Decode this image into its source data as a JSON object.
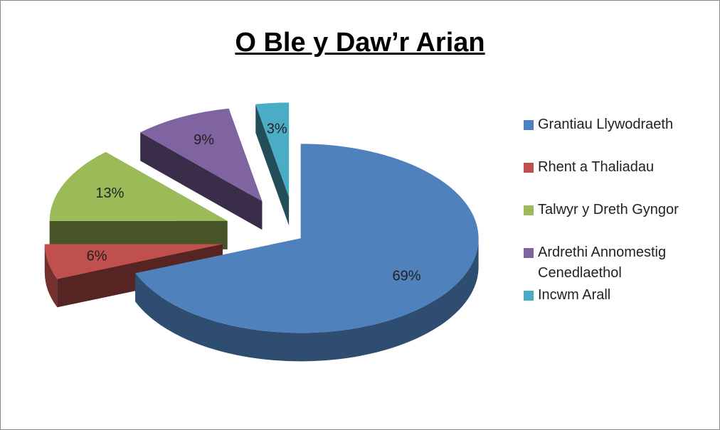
{
  "chart_data": {
    "type": "pie",
    "title": "O Ble y Daw’r Arian",
    "categories": [
      "Grantiau Llywodraeth",
      "Rhent a Thaliadau",
      "Talwyr y Dreth Gyngor",
      "Ardrethi Annomestig Cenedlaethol",
      "Incwm Arall"
    ],
    "values": [
      69,
      6,
      13,
      9,
      3
    ],
    "value_labels": [
      "69%",
      "6%",
      "13%",
      "9%",
      "3%"
    ],
    "colors": [
      "#4f81bd",
      "#c0504d",
      "#9bbb59",
      "#8064a2",
      "#4bacc6"
    ],
    "legend": "right"
  }
}
